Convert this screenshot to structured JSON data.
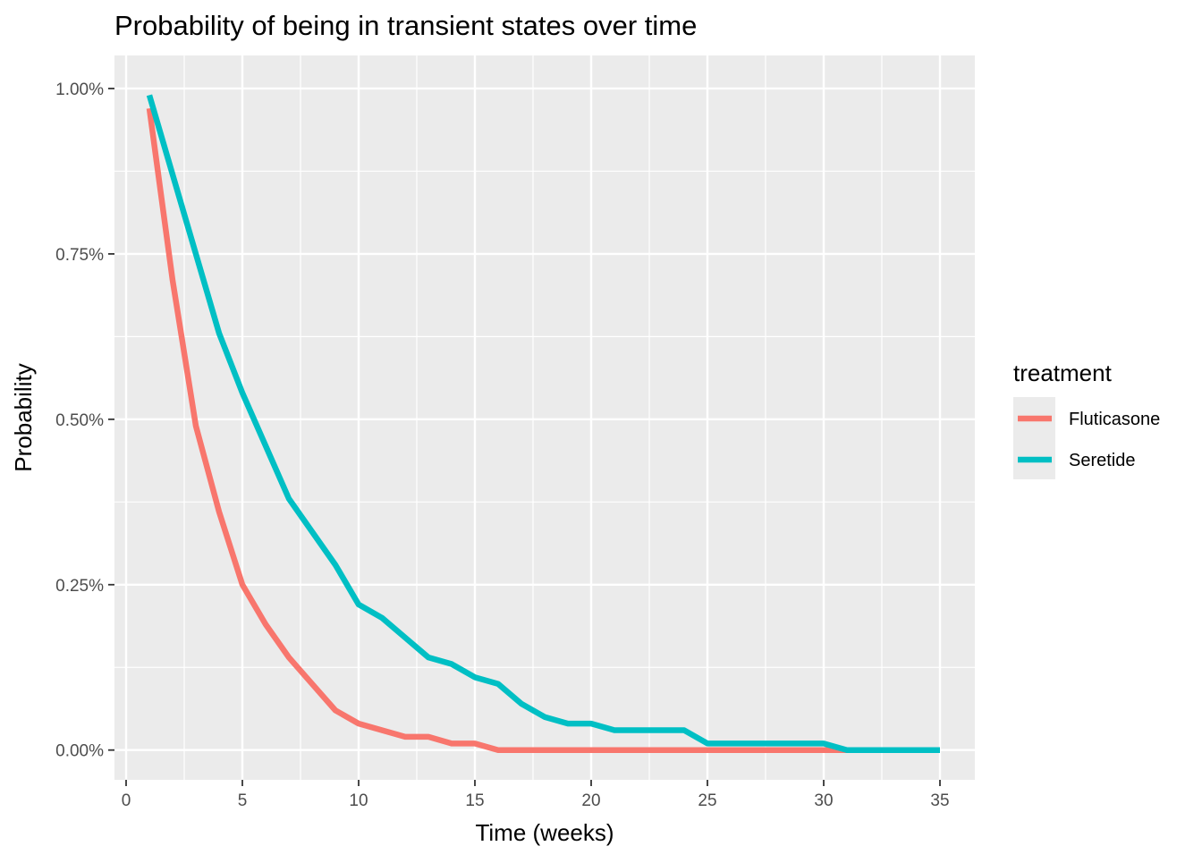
{
  "chart_data": {
    "type": "line",
    "title": "Probability of being in transient states over time",
    "xlabel": "Time (weeks)",
    "ylabel": "Probability",
    "xlim": [
      -0.5,
      36.5
    ],
    "ylim": [
      -0.00045,
      0.0105
    ],
    "x_ticks": [
      0,
      5,
      10,
      15,
      20,
      25,
      30,
      35
    ],
    "x_tick_labels": [
      "0",
      "5",
      "10",
      "15",
      "20",
      "25",
      "30",
      "35"
    ],
    "x_minor_ticks": [
      2.5,
      7.5,
      12.5,
      17.5,
      22.5,
      27.5,
      32.5
    ],
    "y_ticks": [
      0,
      0.0025,
      0.005,
      0.0075,
      0.01
    ],
    "y_tick_labels": [
      "0.00%",
      "0.25%",
      "0.50%",
      "0.75%",
      "1.00%"
    ],
    "y_minor_ticks": [
      0.00125,
      0.00375,
      0.00625,
      0.00875
    ],
    "grid": true,
    "legend": {
      "title": "treatment",
      "position": "right"
    },
    "series": [
      {
        "name": "Fluticasone",
        "color": "#F8766D",
        "x": [
          1,
          2,
          3,
          4,
          5,
          6,
          7,
          8,
          9,
          10,
          11,
          12,
          13,
          14,
          15,
          16,
          17,
          18,
          19,
          20,
          21,
          22,
          23,
          24,
          25,
          26,
          27,
          28,
          29,
          30,
          31,
          32,
          33,
          34,
          35
        ],
        "y": [
          0.0097,
          0.0071,
          0.0049,
          0.0036,
          0.0025,
          0.0019,
          0.0014,
          0.001,
          0.0006,
          0.0004,
          0.0003,
          0.0002,
          0.0002,
          0.0001,
          0.0001,
          0,
          0,
          0,
          0,
          0,
          0,
          0,
          0,
          0,
          0,
          0,
          0,
          0,
          0,
          0,
          0,
          0,
          0,
          0,
          0
        ]
      },
      {
        "name": "Seretide",
        "color": "#00BFC4",
        "x": [
          1,
          2,
          3,
          4,
          5,
          6,
          7,
          8,
          9,
          10,
          11,
          12,
          13,
          14,
          15,
          16,
          17,
          18,
          19,
          20,
          21,
          22,
          23,
          24,
          25,
          26,
          27,
          28,
          29,
          30,
          31,
          32,
          33,
          34,
          35
        ],
        "y": [
          0.0099,
          0.0087,
          0.0075,
          0.0063,
          0.0054,
          0.0046,
          0.0038,
          0.0033,
          0.0028,
          0.0022,
          0.002,
          0.0017,
          0.0014,
          0.0013,
          0.0011,
          0.001,
          0.0007,
          0.0005,
          0.0004,
          0.0004,
          0.0003,
          0.0003,
          0.0003,
          0.0003,
          0.0001,
          0.0001,
          0.0001,
          0.0001,
          0.0001,
          0.0001,
          0,
          0,
          0,
          0,
          0
        ]
      }
    ],
    "panel_background": "#EBEBEB",
    "grid_color": "#FFFFFF",
    "tick_color": "#333333"
  }
}
